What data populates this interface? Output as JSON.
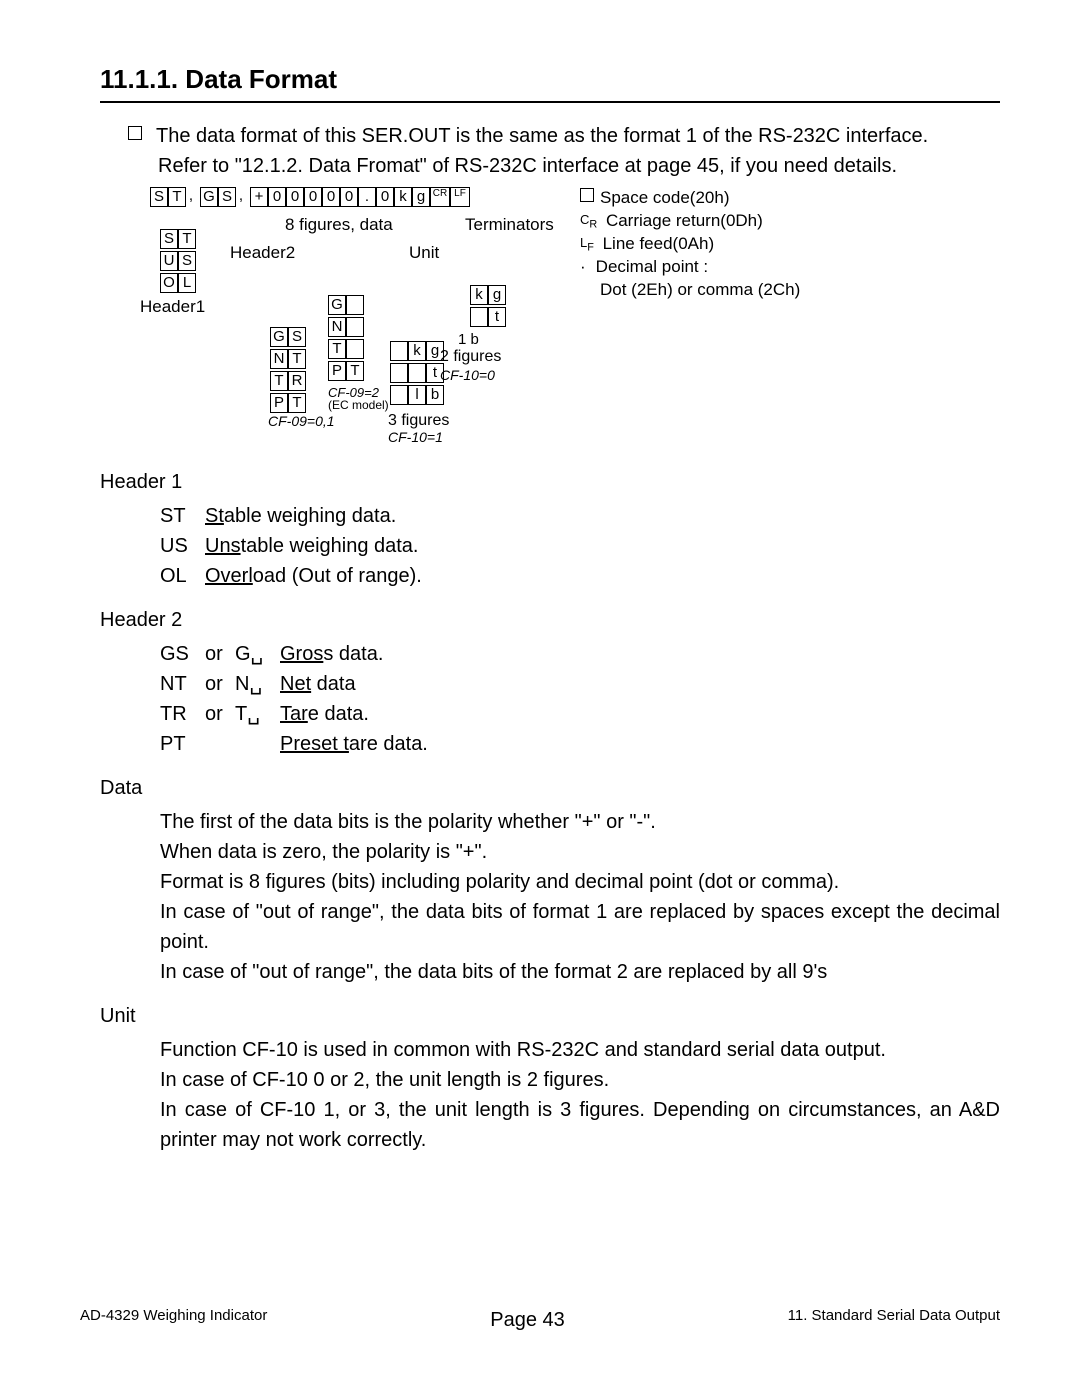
{
  "section_title": "11.1.1. Data Format",
  "intro_para": "The data format of this SER.OUT is the same as the format 1 of the RS-232C interface.",
  "intro_refer": "Refer to \"12.1.2. Data Fromat\" of RS-232C interface at page 45, if you need details.",
  "diagram": {
    "top_cells": [
      "S",
      "T",
      ",",
      "G",
      "S",
      ",",
      "+",
      "0",
      "0",
      "0",
      "0",
      "0",
      ".",
      "0",
      "k",
      "g",
      "CR",
      "LF"
    ],
    "label_8fig": "8 figures, data",
    "label_terminators": "Terminators",
    "label_unit": "Unit",
    "label_header2": "Header2",
    "label_header1": "Header1",
    "h1_rows": [
      "S|T",
      "U|S",
      "O|L"
    ],
    "h2_rows": [
      "G|S",
      "N|T",
      "T|R",
      "P|T"
    ],
    "h2_note": "CF-09=0,1",
    "h2b_rows": [
      "G|␣",
      "N|␣",
      "T|␣",
      "P|T"
    ],
    "h2b_note1": "CF-09=2",
    "h2b_note2": "(EC model)",
    "u1_rows": [
      "k|g",
      "␣|t"
    ],
    "u1_note": "1 b",
    "u1_cap": "2 figures",
    "u1_cf": "CF-10=0",
    "u2_rows": [
      "␣|k|g",
      "␣|␣|t",
      "␣|l|b"
    ],
    "u2_cap": "3 figures",
    "u2_cf": "CF-10=1",
    "legend": {
      "space": "Space code(20h)",
      "cr": "Carriage return(0Dh)",
      "lf": "Line feed(0Ah)",
      "dp": "Decimal point :",
      "dp2": "Dot (2Eh) or comma (2Ch)"
    }
  },
  "header1_title": "Header 1",
  "header1_rows": [
    {
      "code": "ST",
      "desc_pre": "S",
      "desc_u": "t",
      "desc_post": "able weighing data."
    },
    {
      "code": "US",
      "desc_pre": "U",
      "desc_u": "ns",
      "desc_post": "table weighing data."
    },
    {
      "code": "OL",
      "desc_pre": "O",
      "desc_u": "verl",
      "desc_post": "oad (Out of range)."
    }
  ],
  "header2_title": "Header 2",
  "header2_rows": [
    {
      "code": "GS",
      "or": "or",
      "alt": "G␣",
      "d_pre": "G",
      "d_u": "ros",
      "d_post": "s data."
    },
    {
      "code": "NT",
      "or": "or",
      "alt": "N␣",
      "d_pre": "N",
      "d_u": "et",
      "d_post": " data"
    },
    {
      "code": "TR",
      "or": "or",
      "alt": "T␣",
      "d_pre": "T",
      "d_u": "ar",
      "d_post": "e data."
    },
    {
      "code": "PT",
      "or": "",
      "alt": "",
      "d_pre": "P",
      "d_u": "reset t",
      "d_post": "are data."
    }
  ],
  "data_title": "Data",
  "data_lines": [
    "The first of the data bits is the polarity whether \"+\" or \"-\".",
    "When data is zero, the polarity is \"+\".",
    "Format is 8 figures (bits) including polarity and decimal point (dot or comma).",
    "In case of \"out of range\", the data bits of format 1 are replaced by spaces except the decimal point.",
    "In case of \"out of range\", the data bits of the format 2 are replaced by all 9's"
  ],
  "unit_title": "Unit",
  "unit_lines": [
    "Function CF-10 is used in common with RS-232C and standard serial data output.",
    "In case of CF-10  0 or 2, the unit length is 2 figures.",
    "In case of CF-10  1, or 3, the unit length is 3 figures.   Depending on circumstances, an A&D printer may not work correctly."
  ],
  "footer_left": "AD-4329 Weighing Indicator",
  "footer_center": "Page 43",
  "footer_right": "11. Standard Serial Data Output"
}
